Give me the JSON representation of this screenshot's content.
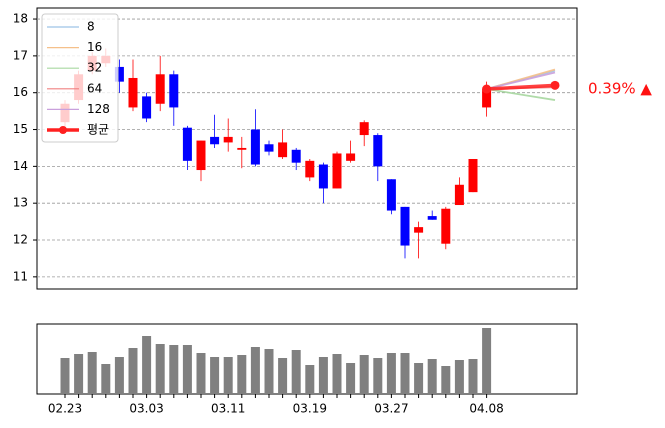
{
  "chart_data": [
    {
      "type": "candlestick",
      "open": [
        15.2,
        15.8,
        16.6,
        16.8,
        16.7,
        15.6,
        15.9,
        15.7,
        16.5,
        15.05,
        13.9,
        14.8,
        14.65,
        14.45,
        15.0,
        14.6,
        14.25,
        14.45,
        13.7,
        14.05,
        13.4,
        14.15,
        14.85,
        14.85,
        13.65,
        12.9,
        12.2,
        12.65,
        11.9,
        12.95,
        13.3,
        15.6
      ],
      "high": [
        15.8,
        16.6,
        17.1,
        17.2,
        16.9,
        16.9,
        16.0,
        17.0,
        16.6,
        15.1,
        14.7,
        15.4,
        15.3,
        14.8,
        15.55,
        14.7,
        15.0,
        14.5,
        14.2,
        14.1,
        14.4,
        14.7,
        15.25,
        14.9,
        13.65,
        12.9,
        12.5,
        12.8,
        12.9,
        13.7,
        14.2,
        16.3
      ],
      "low": [
        15.0,
        15.7,
        16.5,
        16.7,
        16.0,
        15.5,
        15.2,
        15.5,
        15.1,
        13.9,
        13.6,
        14.5,
        14.4,
        13.95,
        14.0,
        14.3,
        14.2,
        13.9,
        13.6,
        13.0,
        13.4,
        14.1,
        14.55,
        13.6,
        12.7,
        11.5,
        11.5,
        12.55,
        11.75,
        12.95,
        13.3,
        15.35
      ],
      "close": [
        15.7,
        16.5,
        17.0,
        17.0,
        16.3,
        16.4,
        15.3,
        16.5,
        15.6,
        14.15,
        14.7,
        14.6,
        14.8,
        14.5,
        14.05,
        14.4,
        14.65,
        14.1,
        14.15,
        13.4,
        14.35,
        14.35,
        15.2,
        14.0,
        12.8,
        11.85,
        12.35,
        12.55,
        12.85,
        13.5,
        14.2,
        16.1
      ],
      "up_color": "#ff0000",
      "down_color": "#0000ff",
      "ylim": [
        10.67,
        18.3
      ],
      "yticks": [
        11,
        12,
        13,
        14,
        15,
        16,
        17,
        18
      ],
      "grid": true,
      "legend": "upper left",
      "forecast": [
        {
          "name": "8",
          "color": "#9ec3e6",
          "values": [
            16.6
          ]
        },
        {
          "name": "16",
          "color": "#f5c08a",
          "values": [
            16.63
          ]
        },
        {
          "name": "32",
          "color": "#a8d8a0",
          "values": [
            15.8
          ]
        },
        {
          "name": "64",
          "color": "#f08080",
          "values": [
            16.15
          ]
        },
        {
          "name": "128",
          "color": "#c9a0dc",
          "values": [
            16.55
          ]
        },
        {
          "name": "평균",
          "color": "#ff2020",
          "values": [
            16.2
          ]
        }
      ],
      "annotation": "0.39% ▲"
    },
    {
      "type": "bar",
      "categories": [
        "02.23",
        null,
        null,
        null,
        null,
        null,
        "03.03",
        null,
        null,
        null,
        null,
        null,
        "03.11",
        null,
        null,
        null,
        null,
        null,
        "03.19",
        null,
        null,
        null,
        null,
        null,
        "03.27",
        null,
        null,
        null,
        null,
        null,
        null,
        "04.08"
      ],
      "values": [
        36,
        40,
        42,
        30,
        37,
        46,
        58,
        50,
        49,
        49,
        41,
        37,
        37,
        39,
        47,
        45,
        36,
        44,
        29,
        37,
        40,
        31,
        39,
        36,
        41,
        41,
        31,
        35,
        28,
        34,
        35,
        66
      ],
      "color": "#808080",
      "ylim": [
        0,
        70
      ]
    }
  ]
}
